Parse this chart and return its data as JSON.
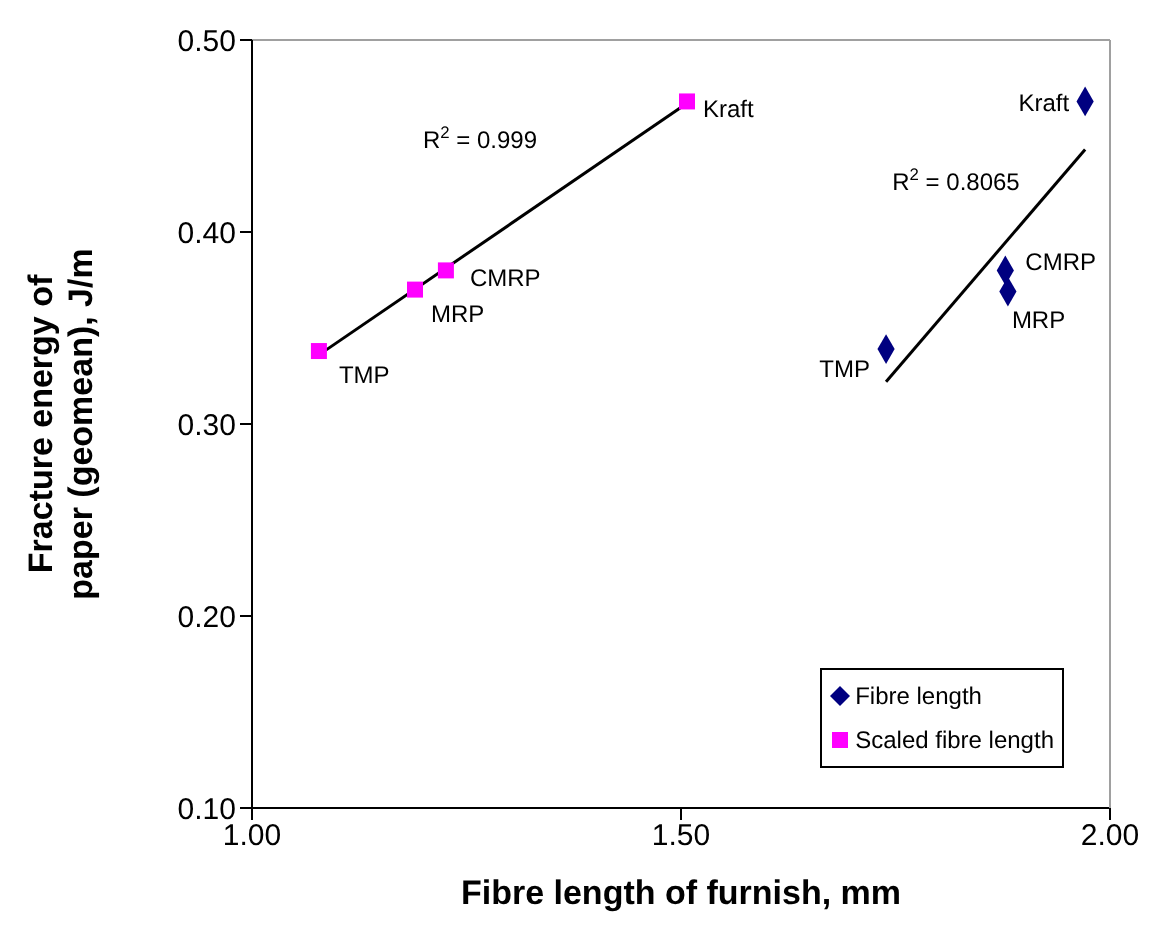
{
  "chart_data": {
    "type": "scatter",
    "xlabel": "Fibre length of furnish, mm",
    "ylabel": "Fracture energy of paper (geomean), J/m",
    "xlim": [
      1.0,
      2.0
    ],
    "xticks": [
      {
        "value": 1.0,
        "label": "1.00"
      },
      {
        "value": 1.5,
        "label": "1.50"
      },
      {
        "value": 2.0,
        "label": "2.00"
      }
    ],
    "ylim": [
      0.1,
      0.5
    ],
    "yticks": [
      {
        "value": 0.1,
        "label": "0.10"
      },
      {
        "value": 0.2,
        "label": "0.20"
      },
      {
        "value": 0.3,
        "label": "0.30"
      },
      {
        "value": 0.4,
        "label": "0.40"
      },
      {
        "value": 0.5,
        "label": "0.50"
      }
    ],
    "legend": "bottom right",
    "series": [
      {
        "name": "Fibre length",
        "color": "#000080",
        "marker": "diamond",
        "x": [
          1.739,
          1.881,
          1.878,
          1.971
        ],
        "values": [
          0.339,
          0.369,
          0.38,
          0.468
        ]
      },
      {
        "name": "Scaled fibre length",
        "color": "#ff00ff",
        "marker": "square",
        "x": [
          1.078,
          1.19,
          1.226,
          1.507
        ],
        "values": [
          0.338,
          0.37,
          0.38,
          0.468
        ]
      },
      {
        "type": "line",
        "color": "#000000",
        "marker": "none",
        "x": [
          1.739,
          1.971
        ],
        "values": [
          0.322,
          0.443
        ]
      },
      {
        "type": "line",
        "color": "#000000",
        "marker": "none",
        "x": [
          1.078,
          1.507
        ],
        "values": [
          0.336,
          0.467
        ]
      }
    ],
    "annotations": [
      {
        "text": "TMP",
        "x": 1.739,
        "y": 0.339
      },
      {
        "text": "MRP",
        "x": 1.881,
        "y": 0.369
      },
      {
        "text": "CMRP",
        "x": 1.878,
        "y": 0.38
      },
      {
        "text": "Kraft",
        "x": 1.971,
        "y": 0.468
      },
      {
        "text": "TMP",
        "x": 1.078,
        "y": 0.338
      },
      {
        "text": "MRP",
        "x": 1.19,
        "y": 0.37
      },
      {
        "text": "CMRP",
        "x": 1.226,
        "y": 0.38
      },
      {
        "text": "Kraft",
        "x": 1.507,
        "y": 0.468
      },
      "R$^{2}$ = 0.8065",
      "R$^{2}$ = 0.999"
    ]
  }
}
